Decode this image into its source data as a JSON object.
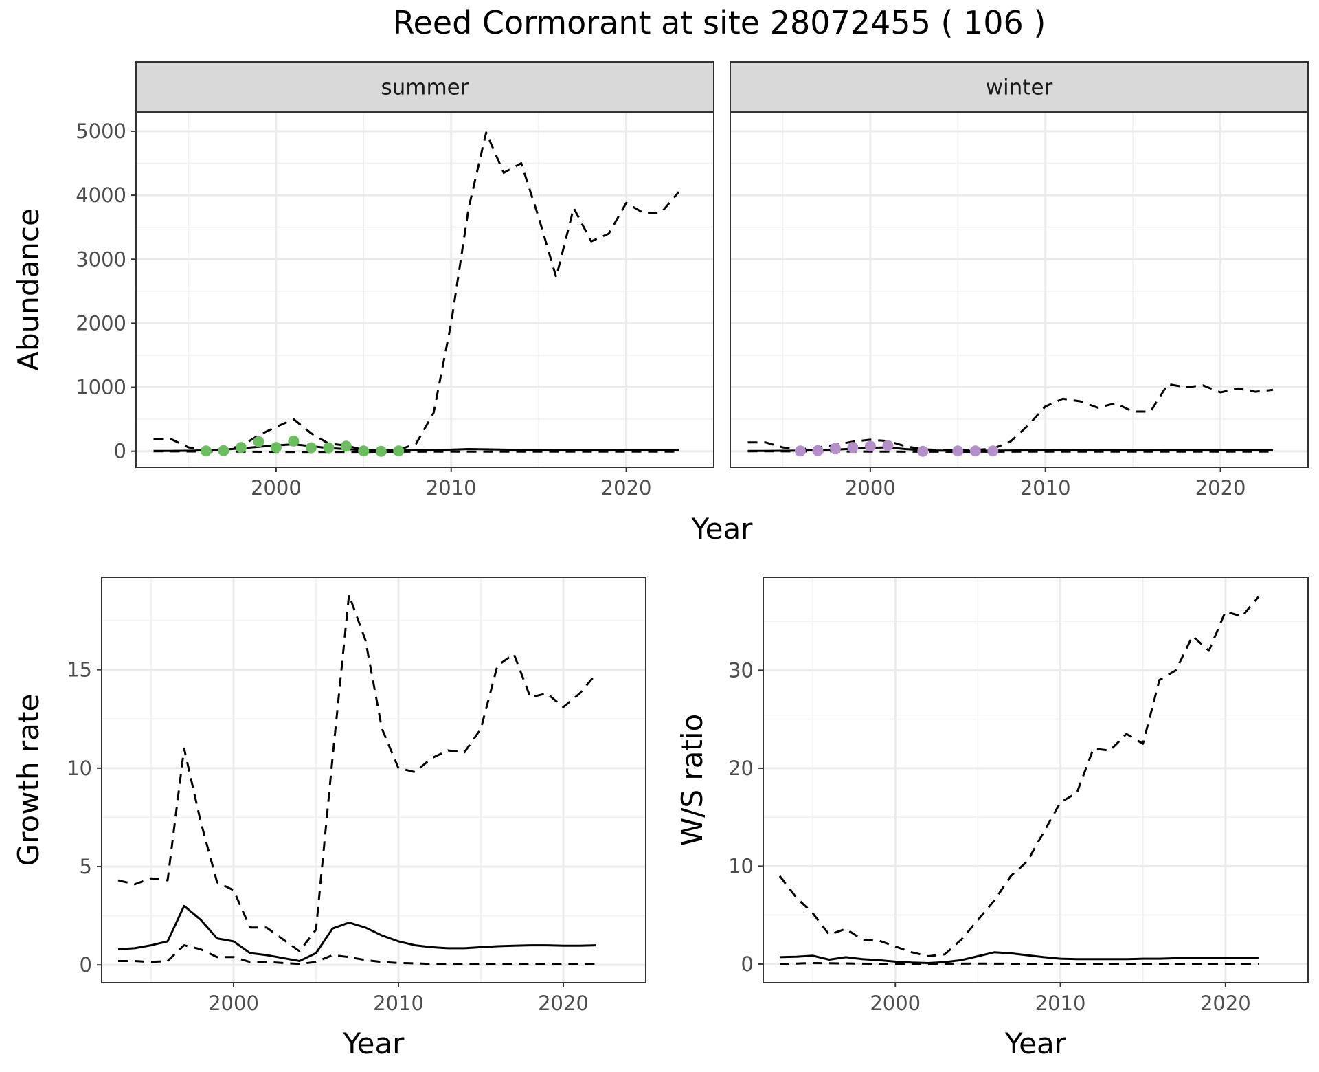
{
  "title": "Reed Cormorant at site 28072455 ( 106 )",
  "chart_data": [
    {
      "type": "line",
      "panel": "abundance",
      "ylabel": "Abundance",
      "xlabel": "Year",
      "xlim": [
        1992,
        2025
      ],
      "ylim": [
        -250,
        5300
      ],
      "x_ticks": [
        2000,
        2010,
        2020
      ],
      "y_ticks": [
        0,
        1000,
        2000,
        3000,
        4000,
        5000
      ],
      "facets": [
        {
          "strip": "summer",
          "point_color": "#6ABE5E",
          "series": [
            {
              "style": "dashed",
              "x": [
                1993,
                1994,
                1995,
                1996,
                1997,
                1998,
                1999,
                2000,
                2001,
                2002,
                2003,
                2004,
                2005,
                2006,
                2007,
                2008,
                2009,
                2010,
                2011,
                2012,
                2013,
                2014,
                2015,
                2016,
                2017,
                2018,
                2019,
                2020,
                2021,
                2022,
                2023
              ],
              "y": [
                190,
                190,
                60,
                20,
                30,
                80,
                250,
                380,
                500,
                280,
                120,
                90,
                20,
                10,
                20,
                120,
                600,
                2000,
                3800,
                4980,
                4350,
                4500,
                3650,
                2720,
                3800,
                3280,
                3400,
                3880,
                3720,
                3730,
                4050
              ]
            },
            {
              "style": "solid",
              "x": [
                1993,
                1994,
                1995,
                1996,
                1997,
                1998,
                1999,
                2000,
                2001,
                2002,
                2003,
                2004,
                2005,
                2006,
                2007,
                2008,
                2009,
                2010,
                2011,
                2012,
                2013,
                2014,
                2015,
                2016,
                2017,
                2018,
                2019,
                2020,
                2021,
                2022,
                2023
              ],
              "y": [
                5,
                5,
                8,
                15,
                25,
                45,
                70,
                90,
                110,
                80,
                50,
                35,
                15,
                10,
                12,
                15,
                20,
                25,
                35,
                30,
                25,
                20,
                20,
                18,
                18,
                18,
                18,
                20,
                20,
                20,
                20
              ]
            },
            {
              "style": "dashed-low",
              "x": [
                1993,
                2000,
                2005,
                2010,
                2015,
                2020,
                2023
              ],
              "y": [
                0,
                -10,
                -10,
                -5,
                -5,
                -5,
                -5
              ]
            }
          ],
          "points": {
            "x": [
              1996,
              1997,
              1998,
              1999,
              2000,
              2001,
              2002,
              2003,
              2004,
              2005,
              2006,
              2007
            ],
            "y": [
              5,
              10,
              60,
              150,
              60,
              160,
              55,
              55,
              80,
              5,
              0,
              5
            ]
          }
        },
        {
          "strip": "winter",
          "point_color": "#B48FCC",
          "series": [
            {
              "style": "dashed",
              "x": [
                1993,
                1994,
                1995,
                1996,
                1997,
                1998,
                1999,
                2000,
                2001,
                2002,
                2003,
                2004,
                2005,
                2006,
                2007,
                2008,
                2009,
                2010,
                2011,
                2012,
                2013,
                2014,
                2015,
                2016,
                2017,
                2018,
                2019,
                2020,
                2021,
                2022,
                2023
              ],
              "y": [
                140,
                140,
                60,
                30,
                60,
                100,
                150,
                180,
                160,
                80,
                30,
                20,
                20,
                20,
                40,
                150,
                400,
                700,
                820,
                780,
                680,
                750,
                620,
                620,
                1050,
                1000,
                1030,
                920,
                980,
                930,
                960
              ]
            },
            {
              "style": "solid",
              "x": [
                1993,
                1994,
                1995,
                1996,
                1997,
                1998,
                1999,
                2000,
                2001,
                2002,
                2003,
                2004,
                2005,
                2006,
                2007,
                2008,
                2009,
                2010,
                2011,
                2012,
                2013,
                2014,
                2015,
                2016,
                2017,
                2018,
                2019,
                2020,
                2021,
                2022,
                2023
              ],
              "y": [
                5,
                5,
                8,
                10,
                15,
                25,
                40,
                55,
                60,
                35,
                15,
                10,
                8,
                8,
                10,
                12,
                15,
                18,
                20,
                18,
                16,
                15,
                14,
                14,
                15,
                15,
                15,
                15,
                15,
                15,
                15
              ]
            },
            {
              "style": "dashed-low",
              "x": [
                1993,
                2000,
                2005,
                2010,
                2015,
                2020,
                2023
              ],
              "y": [
                0,
                -5,
                -8,
                -5,
                -5,
                -5,
                -5
              ]
            }
          ],
          "points": {
            "x": [
              1996,
              1997,
              1998,
              1999,
              2000,
              2001,
              2003,
              2005,
              2006,
              2007
            ],
            "y": [
              5,
              10,
              45,
              60,
              80,
              90,
              0,
              5,
              5,
              5
            ]
          }
        }
      ]
    },
    {
      "type": "line",
      "panel": "growth",
      "ylabel": "Growth rate",
      "xlabel": "Year",
      "xlim": [
        1992,
        2025
      ],
      "ylim": [
        -0.9,
        19.7
      ],
      "x_ticks": [
        2000,
        2010,
        2020
      ],
      "y_ticks": [
        0,
        5,
        10,
        15
      ],
      "series": [
        {
          "style": "dashed",
          "x": [
            1993,
            1994,
            1995,
            1996,
            1997,
            1998,
            1999,
            2000,
            2001,
            2002,
            2003,
            2004,
            2005,
            2006,
            2007,
            2008,
            2009,
            2010,
            2011,
            2012,
            2013,
            2014,
            2015,
            2016,
            2017,
            2018,
            2019,
            2020,
            2021,
            2022
          ],
          "y": [
            4.3,
            4.1,
            4.4,
            4.3,
            11.0,
            7.3,
            4.2,
            3.8,
            1.9,
            1.9,
            1.3,
            0.7,
            1.8,
            10.5,
            18.8,
            16.5,
            12.0,
            10.0,
            9.8,
            10.5,
            10.9,
            10.8,
            12.0,
            15.2,
            15.8,
            13.6,
            13.8,
            13.1,
            13.8,
            14.8
          ]
        },
        {
          "style": "solid",
          "x": [
            1993,
            1994,
            1995,
            1996,
            1997,
            1998,
            1999,
            2000,
            2001,
            2002,
            2003,
            2004,
            2005,
            2006,
            2007,
            2008,
            2009,
            2010,
            2011,
            2012,
            2013,
            2014,
            2015,
            2016,
            2017,
            2018,
            2019,
            2020,
            2021,
            2022
          ],
          "y": [
            0.8,
            0.85,
            1.0,
            1.2,
            3.0,
            2.3,
            1.35,
            1.2,
            0.6,
            0.5,
            0.35,
            0.2,
            0.6,
            1.85,
            2.15,
            1.9,
            1.5,
            1.2,
            1.0,
            0.9,
            0.85,
            0.85,
            0.9,
            0.95,
            0.98,
            1.0,
            1.0,
            0.98,
            0.98,
            1.0
          ]
        },
        {
          "style": "dashed",
          "x": [
            1993,
            1994,
            1995,
            1996,
            1997,
            1998,
            1999,
            2000,
            2001,
            2002,
            2003,
            2004,
            2005,
            2006,
            2007,
            2008,
            2009,
            2010,
            2011,
            2012,
            2013,
            2014,
            2015,
            2016,
            2017,
            2018,
            2019,
            2020,
            2021,
            2022
          ],
          "y": [
            0.2,
            0.2,
            0.15,
            0.2,
            1.0,
            0.8,
            0.4,
            0.4,
            0.15,
            0.15,
            0.1,
            0.05,
            0.15,
            0.5,
            0.4,
            0.25,
            0.15,
            0.1,
            0.08,
            0.05,
            0.05,
            0.05,
            0.05,
            0.05,
            0.05,
            0.05,
            0.05,
            0.05,
            0.03,
            0.03
          ]
        }
      ]
    },
    {
      "type": "line",
      "panel": "ws_ratio",
      "ylabel": "W/S ratio",
      "xlabel": "Year",
      "xlim": [
        1992,
        2025
      ],
      "ylim": [
        -1.9,
        39.5
      ],
      "x_ticks": [
        2000,
        2010,
        2020
      ],
      "y_ticks": [
        0,
        10,
        20,
        30
      ],
      "series": [
        {
          "style": "dashed",
          "x": [
            1993,
            1994,
            1995,
            1996,
            1997,
            1998,
            1999,
            2000,
            2001,
            2002,
            2003,
            2004,
            2005,
            2006,
            2007,
            2008,
            2009,
            2010,
            2011,
            2012,
            2013,
            2014,
            2015,
            2016,
            2017,
            2018,
            2019,
            2020,
            2021,
            2022
          ],
          "y": [
            9.0,
            6.8,
            5.2,
            3.0,
            3.6,
            2.5,
            2.4,
            1.8,
            1.2,
            0.8,
            1.0,
            2.5,
            4.5,
            6.5,
            9.0,
            10.5,
            13.5,
            16.5,
            17.5,
            22.0,
            21.8,
            23.5,
            22.5,
            29.0,
            30.0,
            33.5,
            32.0,
            36.0,
            35.5,
            37.5
          ]
        },
        {
          "style": "solid",
          "x": [
            1993,
            1994,
            1995,
            1996,
            1997,
            1998,
            1999,
            2000,
            2001,
            2002,
            2003,
            2004,
            2005,
            2006,
            2007,
            2008,
            2009,
            2010,
            2011,
            2012,
            2013,
            2014,
            2015,
            2016,
            2017,
            2018,
            2019,
            2020,
            2021,
            2022
          ],
          "y": [
            0.7,
            0.75,
            0.85,
            0.45,
            0.7,
            0.5,
            0.4,
            0.25,
            0.15,
            0.1,
            0.2,
            0.4,
            0.8,
            1.2,
            1.1,
            0.9,
            0.7,
            0.55,
            0.5,
            0.5,
            0.5,
            0.5,
            0.55,
            0.55,
            0.6,
            0.6,
            0.6,
            0.6,
            0.6,
            0.6
          ]
        },
        {
          "style": "dashed",
          "x": [
            1993,
            1995,
            2000,
            2005,
            2010,
            2015,
            2020,
            2022
          ],
          "y": [
            0.0,
            0.1,
            0.0,
            0.05,
            0.0,
            0.0,
            0.0,
            0.0
          ]
        }
      ]
    }
  ]
}
